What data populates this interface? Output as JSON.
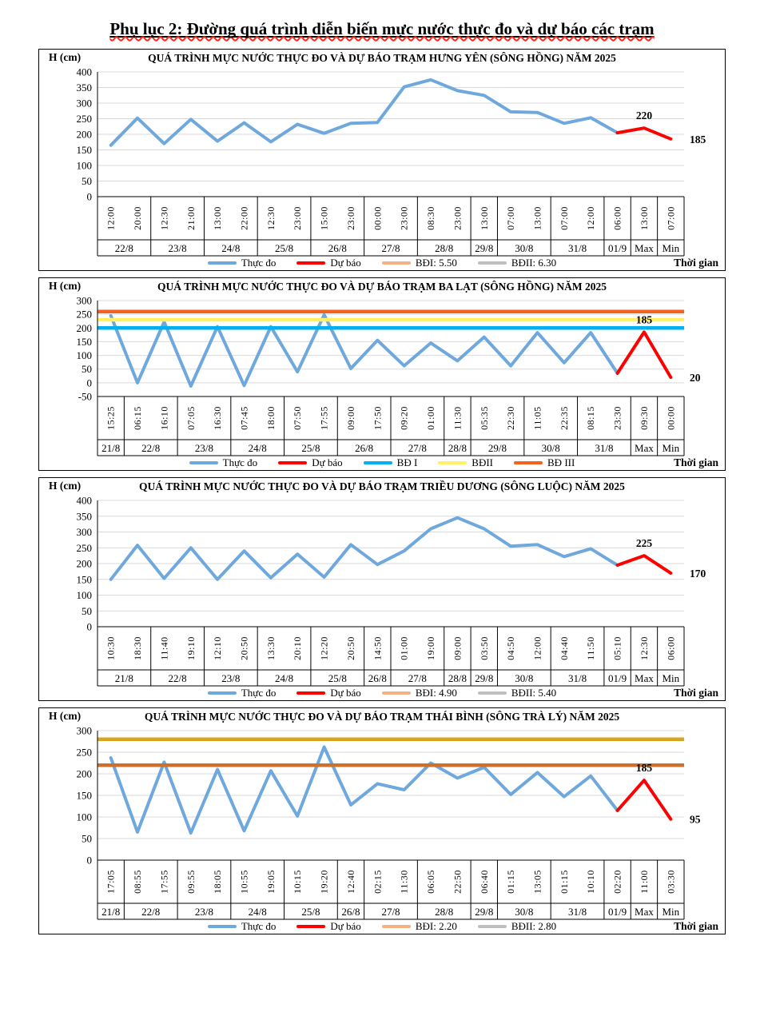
{
  "page": {
    "title": "Phụ lục 2: Đường quá trình diễn biến mực nước thực đo và dự báo các trạm"
  },
  "chart_data": [
    {
      "type": "line",
      "title": "QUÁ TRÌNH MỰC NƯỚC THỰC ĐO VÀ DỰ BÁO TRẠM HƯNG YÊN  (SÔNG HỒNG)  NĂM 2025",
      "ylabel": "H (cm)",
      "xlabel": "Thời gian",
      "ylim": [
        0,
        400
      ],
      "ytick_step": 50,
      "grid": true,
      "legend_position": "bottom",
      "x_groups": [
        {
          "date": "22/8",
          "times": [
            "12:00",
            "20:00"
          ]
        },
        {
          "date": "23/8",
          "times": [
            "12:30",
            "21:00"
          ]
        },
        {
          "date": "24/8",
          "times": [
            "13:00",
            "22:00"
          ]
        },
        {
          "date": "25/8",
          "times": [
            "12:30",
            "23:00"
          ]
        },
        {
          "date": "26/8",
          "times": [
            "15:00",
            "23:00"
          ]
        },
        {
          "date": "27/8",
          "times": [
            "00:00",
            "23:00"
          ]
        },
        {
          "date": "28/8",
          "times": [
            "08:30",
            "23:00"
          ]
        },
        {
          "date": "29/8",
          "times": [
            "13:00"
          ]
        },
        {
          "date": "30/8",
          "times": [
            "07:00",
            "13:00"
          ]
        },
        {
          "date": "31/8",
          "times": [
            "07:00",
            "12:00"
          ]
        },
        {
          "date": "01/9",
          "times": [
            "06:00"
          ]
        },
        {
          "date": "Max",
          "times": [
            "13:00"
          ]
        },
        {
          "date": "Min",
          "times": [
            "07:00"
          ]
        }
      ],
      "observed_values": [
        165,
        252,
        170,
        248,
        178,
        237,
        176,
        232,
        203,
        235,
        238,
        352,
        375,
        340,
        325,
        272,
        270,
        235,
        253,
        205
      ],
      "forecast_values": [
        220,
        185
      ],
      "ref_lines": [],
      "annotations": [
        {
          "text": "220",
          "index": 20,
          "position": "above"
        },
        {
          "text": "185",
          "index": 21,
          "position": "right"
        }
      ],
      "legend": [
        {
          "label": "Thực đo",
          "color": "#6FA8DC"
        },
        {
          "label": "Dự báo",
          "color": "#FF0000"
        },
        {
          "label": "BĐI: 5.50",
          "color": "#F4B183"
        },
        {
          "label": "BĐII: 6.30",
          "color": "#BFBFBF"
        }
      ]
    },
    {
      "type": "line",
      "title": "QUÁ TRÌNH MỰC NƯỚC THỰC ĐO VÀ DỰ BÁO TRẠM BA LẠT (SÔNG HỒNG) NĂM 2025",
      "ylabel": "H (cm)",
      "xlabel": "Thời gian",
      "ylim": [
        -50,
        300
      ],
      "ytick_step": 50,
      "grid": true,
      "legend_position": "bottom",
      "x_groups": [
        {
          "date": "21/8",
          "times": [
            "15:25"
          ]
        },
        {
          "date": "22/8",
          "times": [
            "06:15",
            "16:10"
          ]
        },
        {
          "date": "23/8",
          "times": [
            "07:05",
            "16:30"
          ]
        },
        {
          "date": "24/8",
          "times": [
            "07:45",
            "18:00"
          ]
        },
        {
          "date": "25/8",
          "times": [
            "07:50",
            "17:55"
          ]
        },
        {
          "date": "26/8",
          "times": [
            "09:00",
            "17:50"
          ]
        },
        {
          "date": "27/8",
          "times": [
            "09:20",
            "01:00"
          ]
        },
        {
          "date": "28/8",
          "times": [
            "11:30"
          ]
        },
        {
          "date": "29/8",
          "times": [
            "05:35",
            "22:30"
          ]
        },
        {
          "date": "30/8",
          "times": [
            "11:05",
            "22:35"
          ]
        },
        {
          "date": "31/8",
          "times": [
            "08:15",
            "23:30"
          ]
        },
        {
          "date": "Max",
          "times": [
            "09:30"
          ]
        },
        {
          "date": "Min",
          "times": [
            "00:00"
          ]
        }
      ],
      "observed_values": [
        245,
        0,
        222,
        -12,
        205,
        -10,
        205,
        40,
        248,
        52,
        155,
        62,
        145,
        80,
        167,
        62,
        183,
        73,
        183,
        35
      ],
      "forecast_values": [
        185,
        20
      ],
      "ref_lines": [
        {
          "label": "BĐ I",
          "value": 200,
          "color": "#00B0F0"
        },
        {
          "label": "BĐII",
          "value": 230,
          "color": "#FFF066"
        },
        {
          "label": "BĐ III",
          "value": 260,
          "color": "#F4621F"
        }
      ],
      "annotations": [
        {
          "text": "185",
          "index": 20,
          "position": "above"
        },
        {
          "text": "20",
          "index": 21,
          "position": "right"
        }
      ],
      "legend": [
        {
          "label": "Thực đo",
          "color": "#6FA8DC"
        },
        {
          "label": "Dự báo",
          "color": "#FF0000"
        },
        {
          "label": "BĐ I",
          "color": "#00B0F0"
        },
        {
          "label": "BĐII",
          "color": "#FFF066"
        },
        {
          "label": "BĐ III",
          "color": "#F4621F"
        }
      ]
    },
    {
      "type": "line",
      "title": "QUÁ TRÌNH MỰC NƯỚC THỰC ĐO VÀ DỰ BÁO TRẠM  TRIỀU DƯƠNG (SÔNG LUỘC) NĂM 2025",
      "ylabel": "H (cm)",
      "xlabel": "Thời gian",
      "ylim": [
        0,
        400
      ],
      "ytick_step": 50,
      "grid": true,
      "legend_position": "bottom",
      "x_groups": [
        {
          "date": "21/8",
          "times": [
            "10:30",
            "18:30"
          ]
        },
        {
          "date": "22/8",
          "times": [
            "11:40",
            "19:10"
          ]
        },
        {
          "date": "23/8",
          "times": [
            "12:10",
            "20:50"
          ]
        },
        {
          "date": "24/8",
          "times": [
            "13:30",
            "20:10"
          ]
        },
        {
          "date": "25/8",
          "times": [
            "12:20",
            "20:50"
          ]
        },
        {
          "date": "26/8",
          "times": [
            "14:50"
          ]
        },
        {
          "date": "27/8",
          "times": [
            "01:00",
            "19:00"
          ]
        },
        {
          "date": "28/8",
          "times": [
            "09:00"
          ]
        },
        {
          "date": "29/8",
          "times": [
            "03:50"
          ]
        },
        {
          "date": "30/8",
          "times": [
            "04:50",
            "12:00"
          ]
        },
        {
          "date": "31/8",
          "times": [
            "04:40",
            "11:50"
          ]
        },
        {
          "date": "01/9",
          "times": [
            "05:10"
          ]
        },
        {
          "date": "Max",
          "times": [
            "12:30"
          ]
        },
        {
          "date": "Min",
          "times": [
            "06:00"
          ]
        }
      ],
      "observed_values": [
        150,
        258,
        153,
        250,
        150,
        240,
        155,
        230,
        157,
        260,
        197,
        240,
        310,
        345,
        310,
        255,
        260,
        222,
        247,
        195
      ],
      "forecast_values": [
        225,
        170
      ],
      "ref_lines": [],
      "annotations": [
        {
          "text": "225",
          "index": 20,
          "position": "above"
        },
        {
          "text": "170",
          "index": 21,
          "position": "right"
        }
      ],
      "legend": [
        {
          "label": "Thực đo",
          "color": "#6FA8DC"
        },
        {
          "label": "Dự báo",
          "color": "#FF0000"
        },
        {
          "label": "BĐI: 4.90",
          "color": "#F4B183"
        },
        {
          "label": "BĐII: 5.40",
          "color": "#BFBFBF"
        }
      ]
    },
    {
      "type": "line",
      "title": "QUÁ TRÌNH MỰC NƯỚC THỰC ĐO VÀ DỰ BÁO TRẠM THÁI BÌNH (SÔNG TRÀ LÝ) NĂM 2025",
      "ylabel": "H (cm)",
      "xlabel": "Thời gian",
      "ylim": [
        0,
        300
      ],
      "ytick_step": 50,
      "grid": true,
      "legend_position": "bottom",
      "x_groups": [
        {
          "date": "21/8",
          "times": [
            "17:05"
          ]
        },
        {
          "date": "22/8",
          "times": [
            "08:55",
            "17:55"
          ]
        },
        {
          "date": "23/8",
          "times": [
            "09:55",
            "18:05"
          ]
        },
        {
          "date": "24/8",
          "times": [
            "10:55",
            "19:05"
          ]
        },
        {
          "date": "25/8",
          "times": [
            "10:15",
            "19:20"
          ]
        },
        {
          "date": "26/8",
          "times": [
            "12:40"
          ]
        },
        {
          "date": "27/8",
          "times": [
            "02:15",
            "11:30"
          ]
        },
        {
          "date": "28/8",
          "times": [
            "06:05",
            "22:50"
          ]
        },
        {
          "date": "29/8",
          "times": [
            "06:40"
          ]
        },
        {
          "date": "30/8",
          "times": [
            "01:15",
            "13:05"
          ]
        },
        {
          "date": "31/8",
          "times": [
            "01:15",
            "10:10"
          ]
        },
        {
          "date": "01/9",
          "times": [
            "02:20"
          ]
        },
        {
          "date": "Max",
          "times": [
            "11:00"
          ]
        },
        {
          "date": "Min",
          "times": [
            "03:30"
          ]
        }
      ],
      "observed_values": [
        237,
        65,
        227,
        63,
        210,
        68,
        207,
        102,
        262,
        128,
        177,
        163,
        225,
        190,
        215,
        152,
        203,
        147,
        195,
        115
      ],
      "forecast_values": [
        185,
        95
      ],
      "ref_lines": [
        {
          "label": "BĐI",
          "value": 220,
          "color": "#CD7029"
        },
        {
          "label": "BĐII",
          "value": 280,
          "color": "#D9A420"
        }
      ],
      "annotations": [
        {
          "text": "185",
          "index": 20,
          "position": "above"
        },
        {
          "text": "95",
          "index": 21,
          "position": "right"
        }
      ],
      "legend": [
        {
          "label": "Thực đo",
          "color": "#6FA8DC"
        },
        {
          "label": "Dự báo",
          "color": "#FF0000"
        },
        {
          "label": "BĐI: 2.20",
          "color": "#F4B183"
        },
        {
          "label": "BĐII: 2.80",
          "color": "#BFBFBF"
        }
      ]
    }
  ]
}
